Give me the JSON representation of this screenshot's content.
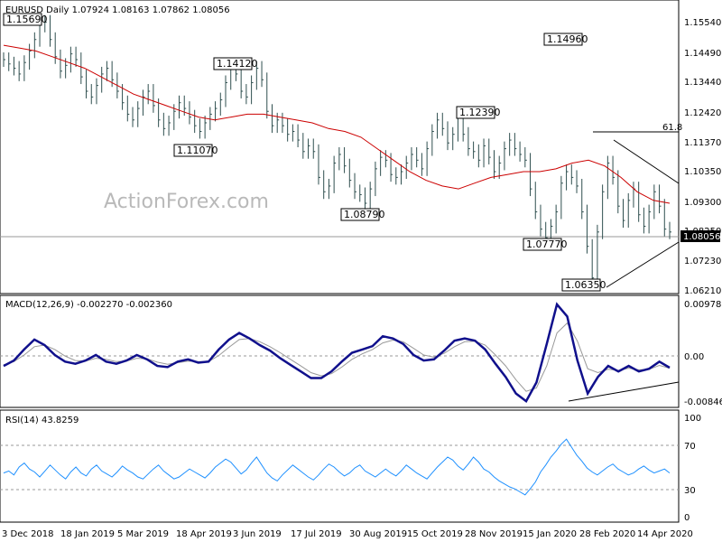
{
  "chart_data": [
    {
      "type": "candlestick",
      "title": "EURUSD Daily",
      "ohlc": "1.07924 1.08163 1.07862 1.08056",
      "watermark": "ActionForex.com",
      "last_price": "1.08056",
      "y_ticks": [
        "1.15540",
        "1.14490",
        "1.13440",
        "1.12420",
        "1.11370",
        "1.10350",
        "1.09300",
        "1.08250",
        "1.07230",
        "1.06210"
      ],
      "ylim": [
        1.0605,
        1.1605
      ],
      "x_labels": [
        "3 Dec 2018",
        "18 Jan 2019",
        "5 Mar 2019",
        "18 Apr 2019",
        "3 Jun 2019",
        "17 Jul 2019",
        "30 Aug 2019",
        "15 Oct 2019",
        "28 Nov 2019",
        "15 Jan 2020",
        "28 Feb 2020",
        "14 Apr 2020"
      ],
      "annotations": [
        "1.15690",
        "1.14120",
        "1.11070",
        "1.08790",
        "1.12390",
        "1.14960",
        "1.07770",
        "1.06350"
      ],
      "fib_label": "61.8",
      "series": [
        {
          "name": "EURUSD",
          "close": [
            1.141,
            1.1395,
            1.138,
            1.136,
            1.14,
            1.144,
            1.148,
            1.153,
            1.154,
            1.148,
            1.142,
            1.137,
            1.139,
            1.143,
            1.141,
            1.135,
            1.13,
            1.128,
            1.132,
            1.136,
            1.138,
            1.134,
            1.13,
            1.126,
            1.122,
            1.12,
            1.124,
            1.128,
            1.13,
            1.125,
            1.12,
            1.117,
            1.119,
            1.123,
            1.126,
            1.124,
            1.121,
            1.118,
            1.116,
            1.119,
            1.122,
            1.124,
            1.127,
            1.133,
            1.138,
            1.136,
            1.13,
            1.128,
            1.133,
            1.138,
            1.134,
            1.123,
            1.118,
            1.12,
            1.118,
            1.115,
            1.116,
            1.113,
            1.109,
            1.111,
            1.109,
            1.1,
            1.095,
            1.097,
            1.105,
            1.108,
            1.104,
            1.099,
            1.095,
            1.094,
            1.091,
            1.096,
            1.103,
            1.107,
            1.106,
            1.101,
            1.1,
            1.102,
            1.105,
            1.108,
            1.106,
            1.103,
            1.11,
            1.116,
            1.12,
            1.117,
            1.112,
            1.115,
            1.122,
            1.115,
            1.11,
            1.109,
            1.106,
            1.111,
            1.107,
            1.102,
            1.105,
            1.11,
            1.113,
            1.11,
            1.108,
            1.106,
            1.096,
            1.088,
            1.082,
            1.079,
            1.083,
            1.088,
            1.098,
            1.102,
            1.1,
            1.097,
            1.088,
            1.076,
            1.065,
            1.081,
            1.095,
            1.105,
            1.1,
            1.09,
            1.085,
            1.092,
            1.096,
            1.087,
            1.083,
            1.088,
            1.095,
            1.09,
            1.082,
            1.081
          ]
        },
        {
          "name": "MA",
          "values": [
            1.146,
            1.145,
            1.144,
            1.142,
            1.14,
            1.138,
            1.135,
            1.132,
            1.129,
            1.127,
            1.125,
            1.123,
            1.121,
            1.12,
            1.121,
            1.122,
            1.122,
            1.121,
            1.12,
            1.119,
            1.117,
            1.116,
            1.114,
            1.11,
            1.106,
            1.102,
            1.099,
            1.097,
            1.096,
            1.098,
            1.1,
            1.101,
            1.102,
            1.102,
            1.103,
            1.105,
            1.106,
            1.104,
            1.1,
            1.095,
            1.092,
            1.091
          ]
        }
      ]
    },
    {
      "type": "line",
      "title": "MACD(12,26,9) -0.002270 -0.002360",
      "y_ticks": [
        "0.00978",
        "0.00",
        "-0.008464"
      ],
      "ylim": [
        -0.0092,
        0.0105
      ],
      "series": [
        {
          "name": "MACD",
          "values": [
            -0.002,
            -0.001,
            0.001,
            0.0028,
            0.0018,
            0.0,
            -0.0012,
            -0.0016,
            -0.001,
            0.0,
            -0.0012,
            -0.0016,
            -0.001,
            0.0,
            -0.0008,
            -0.002,
            -0.0022,
            -0.0012,
            -0.0008,
            -0.0014,
            -0.0012,
            0.001,
            0.0028,
            0.004,
            0.003,
            0.0018,
            0.0008,
            -0.0006,
            -0.0018,
            -0.003,
            -0.0042,
            -0.0042,
            -0.003,
            -0.0012,
            0.0004,
            0.001,
            0.0016,
            0.0034,
            0.003,
            0.002,
            0.0,
            -0.001,
            -0.0008,
            0.0008,
            0.0026,
            0.003,
            0.0026,
            0.001,
            -0.0016,
            -0.004,
            -0.007,
            -0.0084,
            -0.005,
            0.002,
            0.0092,
            0.007,
            -0.001,
            -0.007,
            -0.004,
            -0.002,
            -0.003,
            -0.002,
            -0.003,
            -0.0025,
            -0.0012,
            -0.0023
          ]
        },
        {
          "name": "Signal",
          "values": [
            -0.0018,
            -0.0012,
            0.0,
            0.0015,
            0.0018,
            0.001,
            -0.0002,
            -0.001,
            -0.0011,
            -0.0006,
            -0.0008,
            -0.0012,
            -0.0011,
            -0.0006,
            -0.0007,
            -0.0013,
            -0.0017,
            -0.0014,
            -0.0011,
            -0.0012,
            -0.0012,
            -0.0001,
            0.0014,
            0.0028,
            0.003,
            0.0024,
            0.0015,
            0.0004,
            -0.0008,
            -0.002,
            -0.0032,
            -0.0038,
            -0.0034,
            -0.0022,
            -0.0008,
            0.0002,
            0.001,
            0.0022,
            0.0027,
            0.0024,
            0.0012,
            0.0,
            -0.0004,
            0.0003,
            0.0015,
            0.0024,
            0.0025,
            0.0018,
            0.0,
            -0.002,
            -0.0045,
            -0.0066,
            -0.006,
            -0.002,
            0.004,
            0.0058,
            0.0025,
            -0.0025,
            -0.0032,
            -0.0026,
            -0.0028,
            -0.0024,
            -0.0027,
            -0.0026,
            -0.0019,
            -0.0024
          ]
        }
      ]
    },
    {
      "type": "line",
      "title": "RSI(14) 43.8259",
      "y_ticks": [
        "100",
        "70",
        "30",
        "0"
      ],
      "ylim": [
        0,
        100
      ],
      "levels": [
        70,
        30
      ],
      "series": [
        {
          "name": "RSI",
          "values": [
            44,
            46,
            42,
            50,
            54,
            48,
            45,
            40,
            46,
            52,
            47,
            42,
            38,
            45,
            50,
            44,
            41,
            48,
            52,
            46,
            43,
            40,
            45,
            51,
            47,
            44,
            40,
            38,
            43,
            48,
            52,
            46,
            42,
            38,
            40,
            44,
            48,
            45,
            42,
            39,
            44,
            50,
            54,
            58,
            55,
            49,
            43,
            47,
            54,
            60,
            52,
            44,
            39,
            36,
            42,
            47,
            52,
            48,
            44,
            40,
            37,
            42,
            48,
            53,
            50,
            45,
            41,
            44,
            49,
            52,
            46,
            43,
            40,
            44,
            48,
            44,
            41,
            46,
            52,
            48,
            44,
            41,
            38,
            44,
            50,
            55,
            60,
            57,
            51,
            47,
            53,
            60,
            55,
            48,
            45,
            40,
            36,
            33,
            30,
            28,
            25,
            22,
            28,
            35,
            45,
            52,
            60,
            66,
            73,
            78,
            70,
            62,
            56,
            49,
            45,
            42,
            46,
            50,
            53,
            48,
            45,
            42,
            44,
            48,
            51,
            47,
            44,
            46,
            48,
            44
          ]
        }
      ]
    }
  ]
}
